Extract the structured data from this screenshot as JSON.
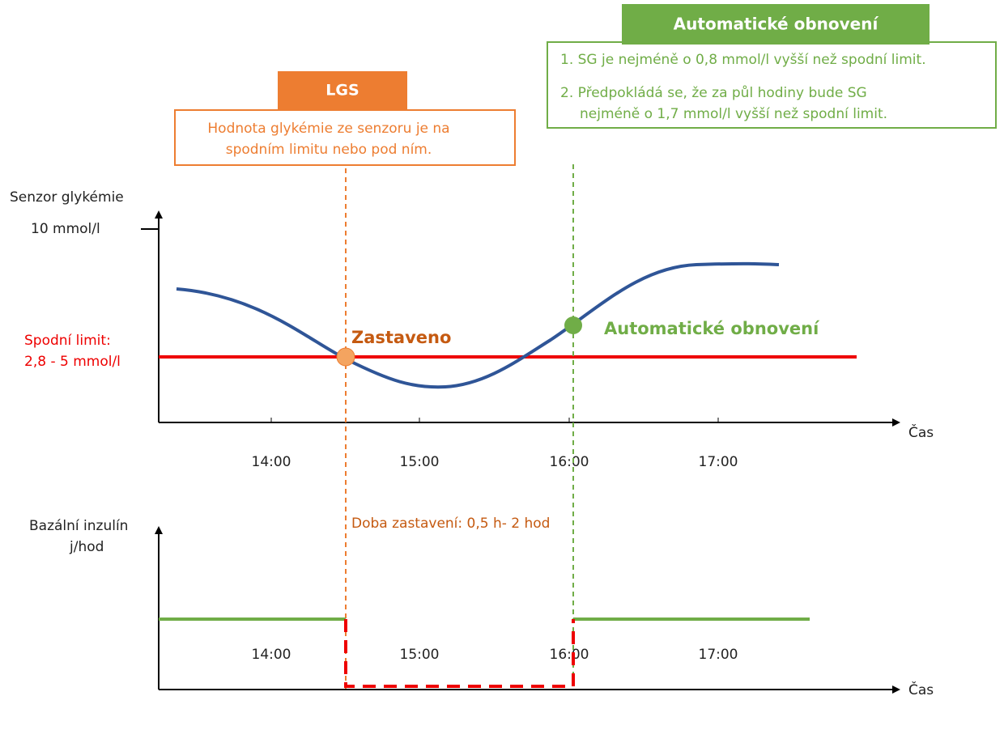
{
  "lgs": {
    "title": "LGS",
    "lines": [
      "Hodnota glykémie ze senzoru je na",
      "spodním limitu nebo pod ním."
    ]
  },
  "auto_resume": {
    "title": "Automatické obnovení",
    "lines": [
      "1. SG je nejméně o 0,8 mmol/l  vyšší než spodní limit.",
      "2. Předpokládá se, že za půl hodiny bude SG",
      "nejméně o 1,7 mmol/l vyšší než spodní limit."
    ]
  },
  "top_chart": {
    "y_label": "Senzor glykémie",
    "y_tick": "10 mmol/l",
    "limit_label": [
      "Spodní limit:",
      "2,8 - 5 mmol/l"
    ],
    "x_label": "Čas",
    "x_ticks": [
      "14:00",
      "15:00",
      "16:00",
      "17:00"
    ],
    "stop_label": "Zastaveno",
    "resume_label": "Automatické obnovení"
  },
  "bottom_chart": {
    "y_label": [
      "Bazální inzulín",
      "j/hod"
    ],
    "x_label": "Čas",
    "x_ticks": [
      "14:00",
      "15:00",
      "16:00",
      "17:00"
    ],
    "duration_label": "Doba zastavení: 0,5 h- 2 hod"
  }
}
